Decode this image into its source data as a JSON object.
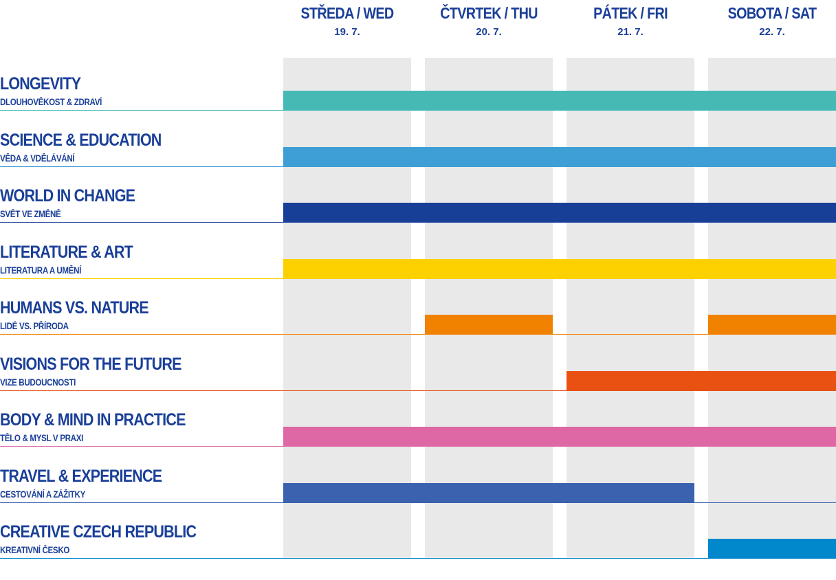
{
  "days": [
    {
      "name": "STŘEDA / WED",
      "date": "19. 7."
    },
    {
      "name": "ČTVRTEK / THU",
      "date": "20. 7."
    },
    {
      "name": "PÁTEK / FRI",
      "date": "21. 7."
    },
    {
      "name": "SOBOTA / SAT",
      "date": "22. 7."
    }
  ],
  "tracks": [
    {
      "title": "LONGEVITY",
      "subtitle": "DLOUHOVĚKOST & ZDRAVÍ",
      "color": "#46b9b4",
      "days": [
        1,
        1,
        1,
        1
      ]
    },
    {
      "title": "SCIENCE & EDUCATION",
      "subtitle": "VĚDA & VDĚLÁVÁNÍ",
      "color": "#3d9fd6",
      "days": [
        1,
        1,
        1,
        1
      ]
    },
    {
      "title": "WORLD IN CHANGE",
      "subtitle": "SVĚT VE ZMĚNĚ",
      "color": "#183f98",
      "days": [
        1,
        1,
        1,
        1
      ]
    },
    {
      "title": "LITERATURE & ART",
      "subtitle": "LITERATURA A UMĚNÍ",
      "color": "#fdd000",
      "days": [
        1,
        1,
        1,
        1
      ]
    },
    {
      "title": "HUMANS VS. NATURE",
      "subtitle": "LIDÉ VS. PŘÍRODA",
      "color": "#f08200",
      "days": [
        0,
        1,
        0,
        1
      ]
    },
    {
      "title": "VISIONS FOR THE FUTURE",
      "subtitle": "VIZE BUDOUCNOSTI",
      "color": "#e85112",
      "days": [
        0,
        0,
        1,
        1
      ]
    },
    {
      "title": "BODY & MIND IN PRACTICE",
      "subtitle": "TĚLO & MYSL V PRAXI",
      "color": "#de67a5",
      "days": [
        1,
        1,
        1,
        1
      ]
    },
    {
      "title": "TRAVEL & EXPERIENCE",
      "subtitle": "CESTOVÁNÍ A ZÁŽITKY",
      "color": "#3a62ae",
      "days": [
        1,
        1,
        1,
        0
      ]
    },
    {
      "title": "CREATIVE CZECH REPUBLIC",
      "subtitle": "KREATIVNÍ ČESKO",
      "color": "#0087cc",
      "days": [
        0,
        0,
        0,
        1
      ]
    }
  ]
}
